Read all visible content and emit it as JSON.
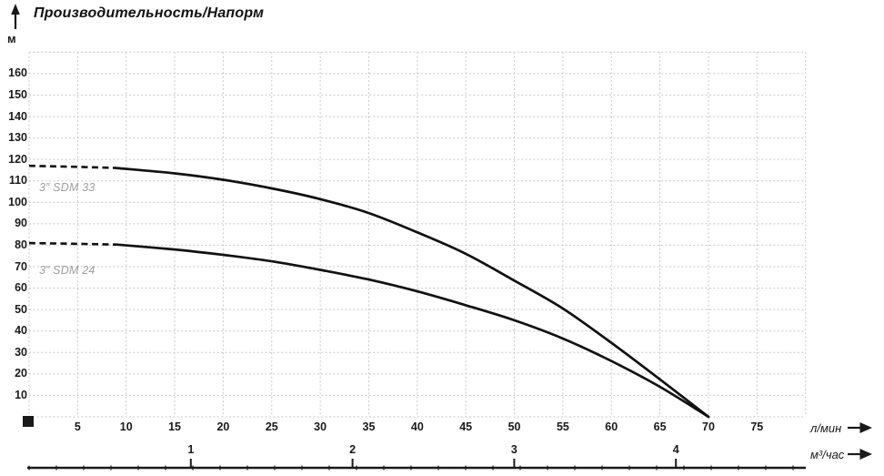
{
  "title": "Производительность/Напорм",
  "y_axis": {
    "unit": "м",
    "ticks": [
      160,
      150,
      140,
      130,
      120,
      110,
      100,
      90,
      80,
      70,
      60,
      50,
      40,
      30,
      20,
      10
    ]
  },
  "x_axis_lmin": {
    "unit": "л/мин",
    "ticks": [
      5,
      10,
      15,
      20,
      25,
      30,
      35,
      40,
      45,
      50,
      55,
      60,
      65,
      70,
      75
    ]
  },
  "x_axis_m3h": {
    "unit": "м³/час",
    "ticks": [
      1,
      2,
      3,
      4
    ]
  },
  "colors": {
    "curve": "#111111",
    "grid": "#c7c7c7",
    "text": "#1a1a1a",
    "curve_label": "#9e9e9e",
    "background": "#ffffff"
  },
  "chart_data": {
    "type": "line",
    "title": "Производительность/Напорм",
    "ylabel": "м",
    "xlabel_primary": "л/мин",
    "xlabel_secondary": "м³/час",
    "xlim_lmin": [
      0,
      80
    ],
    "ylim_m": [
      0,
      170
    ],
    "grid": true,
    "legend_position": "inline-left",
    "series": [
      {
        "name": "3” SDM 33",
        "style": "dashed-then-solid",
        "solid_from_lmin": 9,
        "points_lmin_m": [
          [
            0,
            117
          ],
          [
            4.5,
            116.6
          ],
          [
            9,
            116
          ],
          [
            15,
            113.5
          ],
          [
            20,
            110.5
          ],
          [
            25,
            106.5
          ],
          [
            30,
            101.5
          ],
          [
            35,
            95
          ],
          [
            40,
            86
          ],
          [
            45,
            76
          ],
          [
            50,
            63.5
          ],
          [
            55,
            50.5
          ],
          [
            60,
            34.5
          ],
          [
            65,
            17.5
          ],
          [
            70,
            0
          ]
        ]
      },
      {
        "name": "3” SDM 24",
        "style": "dashed-then-solid",
        "solid_from_lmin": 9,
        "points_lmin_m": [
          [
            0,
            81
          ],
          [
            4.5,
            80.7
          ],
          [
            9,
            80.3
          ],
          [
            15,
            78
          ],
          [
            20,
            75.5
          ],
          [
            25,
            72.5
          ],
          [
            30,
            68.5
          ],
          [
            35,
            64
          ],
          [
            40,
            58.5
          ],
          [
            45,
            52
          ],
          [
            50,
            45
          ],
          [
            55,
            36.5
          ],
          [
            60,
            26
          ],
          [
            65,
            14
          ],
          [
            70,
            0
          ]
        ]
      }
    ]
  }
}
